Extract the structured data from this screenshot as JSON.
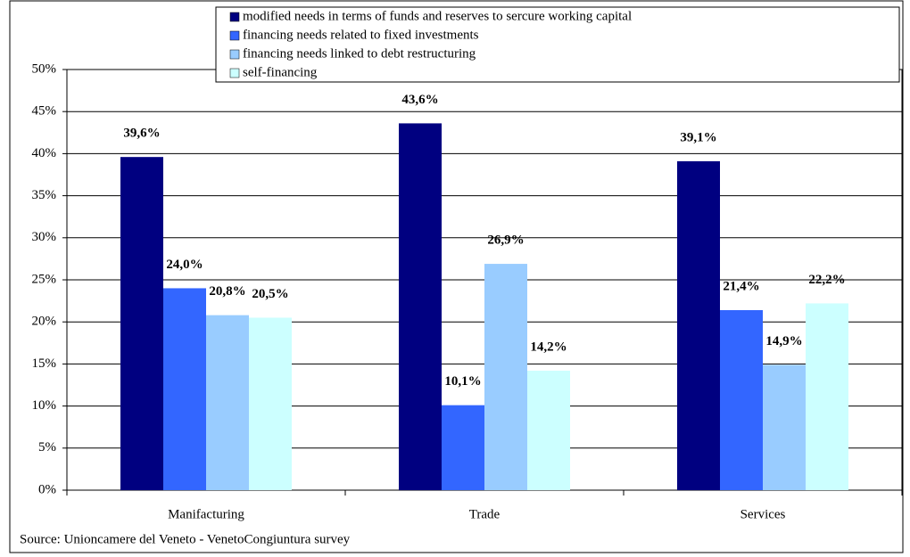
{
  "chart_data": {
    "type": "bar",
    "categories": [
      "Manifacturing",
      "Trade",
      "Services"
    ],
    "series": [
      {
        "name": "modified needs in terms of funds and reserves to sercure working capital",
        "color": "#000080",
        "values": [
          39.6,
          43.6,
          39.1
        ],
        "value_labels": [
          "39,6%",
          "43,6%",
          "39,1%"
        ]
      },
      {
        "name": "financing needs related to fixed investments",
        "color": "#3366ff",
        "values": [
          24.0,
          10.1,
          21.4
        ],
        "value_labels": [
          "24,0%",
          "10,1%",
          "21,4%"
        ]
      },
      {
        "name": "financing needs linked to debt restructuring",
        "color": "#99ccff",
        "values": [
          20.8,
          26.9,
          14.9
        ],
        "value_labels": [
          "20,8%",
          "26,9%",
          "14,9%"
        ]
      },
      {
        "name": "self-financing",
        "color": "#ccffff",
        "values": [
          20.5,
          14.2,
          22.2
        ],
        "value_labels": [
          "20,5%",
          "14,2%",
          "22,2%"
        ]
      }
    ],
    "ylim": [
      0,
      50
    ],
    "yticks": [
      {
        "value": 0,
        "label": "0%"
      },
      {
        "value": 5,
        "label": "5%"
      },
      {
        "value": 10,
        "label": "10%"
      },
      {
        "value": 15,
        "label": "15%"
      },
      {
        "value": 20,
        "label": "20%"
      },
      {
        "value": 25,
        "label": "25%"
      },
      {
        "value": 30,
        "label": "30%"
      },
      {
        "value": 35,
        "label": "35%"
      },
      {
        "value": 40,
        "label": "40%"
      },
      {
        "value": 45,
        "label": "45%"
      },
      {
        "value": 50,
        "label": "50%"
      }
    ],
    "grid": true,
    "legend": "top",
    "source": "Source: Unioncamere del Veneto - VenetoCongiuntura survey"
  }
}
